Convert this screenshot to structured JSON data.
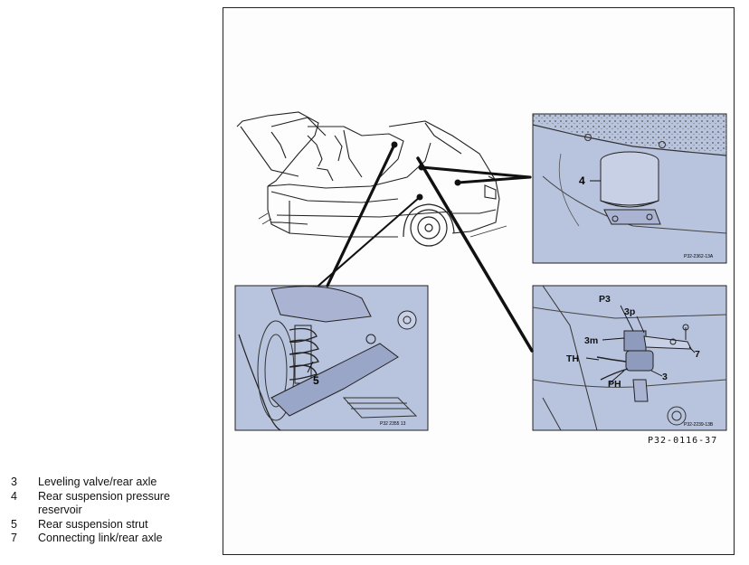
{
  "legend": [
    {
      "num": "3",
      "text": "Leveling valve/rear axle"
    },
    {
      "num": "4",
      "text": "Rear suspension pressure reservoir"
    },
    {
      "num": "5",
      "text": "Rear suspension strut"
    },
    {
      "num": "7",
      "text": "Connecting link/rear axle"
    }
  ],
  "figure_ref": "P32-0116-37",
  "panels": {
    "reservoir": {
      "callout": "4",
      "code": "P32-2362-13A"
    },
    "strut": {
      "callout": "5",
      "code": "P32 2355 13"
    },
    "valve": {
      "callouts": {
        "p3": "P3",
        "three_p": "3p",
        "three_m": "3m",
        "th": "TH",
        "ph": "PH",
        "three": "3",
        "seven": "7"
      },
      "code": "P32-2239-13B"
    }
  },
  "colors": {
    "panel_fill": "#b8c3de",
    "line": "#111111"
  }
}
